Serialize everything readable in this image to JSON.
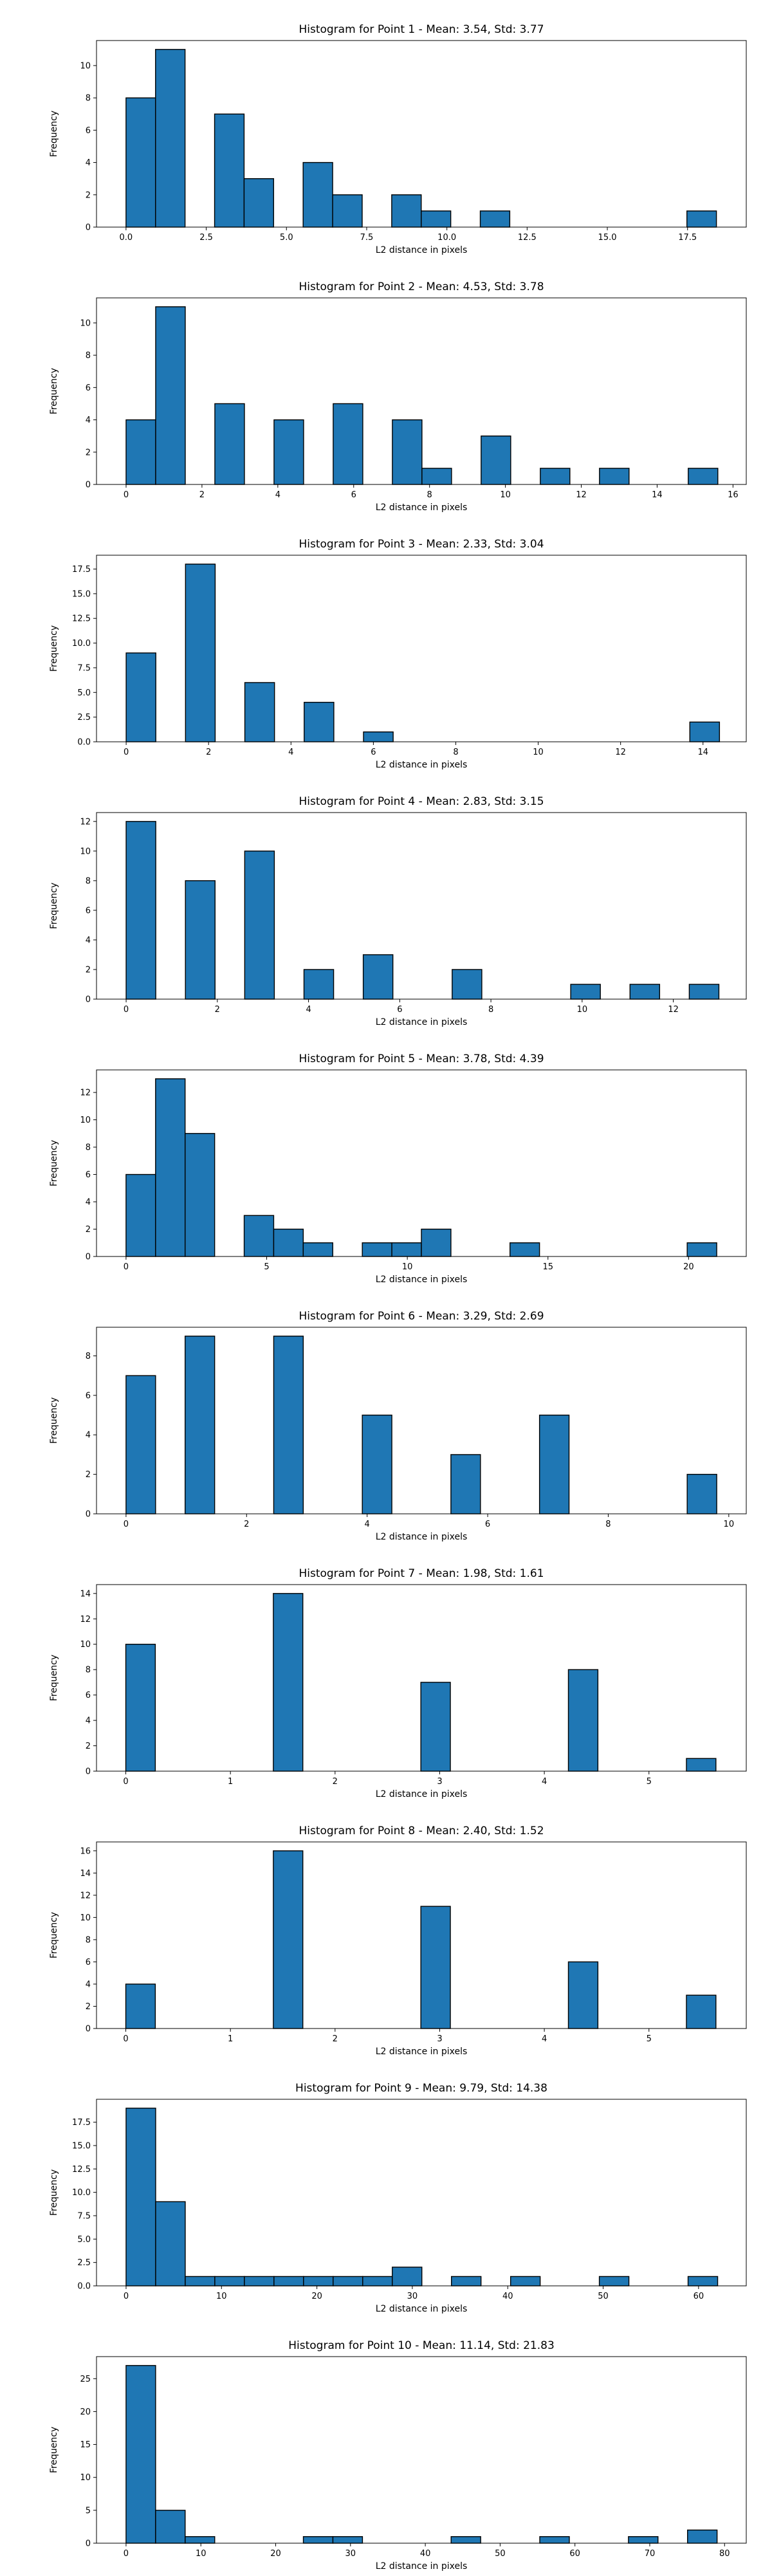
{
  "chart_data": [
    {
      "type": "bar",
      "title": "Histogram for Point 1 - Mean: 3.54, Std: 3.77",
      "xlabel": "L2 distance in pixels",
      "ylabel": "Frequency",
      "xlim": [
        -0.92,
        19.33
      ],
      "ylim": [
        0,
        11.55
      ],
      "xticks": [
        "0.0",
        "2.5",
        "5.0",
        "7.5",
        "10.0",
        "12.5",
        "15.0",
        "17.5"
      ],
      "xtick_values": [
        0,
        2.5,
        5,
        7.5,
        10,
        12.5,
        15,
        17.5
      ],
      "yticks": [
        0,
        2,
        4,
        6,
        8,
        10
      ],
      "bin_width": 0.92,
      "bins": [
        0,
        0.92,
        1.84,
        2.76,
        3.68,
        4.6,
        5.52,
        6.44,
        7.36,
        8.28,
        9.2,
        10.12,
        11.04,
        11.96,
        12.88,
        13.8,
        14.72,
        15.64,
        16.56,
        17.48
      ],
      "counts": [
        8,
        11,
        0,
        7,
        3,
        0,
        4,
        2,
        0,
        2,
        1,
        0,
        1,
        0,
        0,
        0,
        0,
        0,
        0,
        1
      ],
      "grid": false
    },
    {
      "type": "bar",
      "title": "Histogram for Point 2 - Mean: 4.53, Std: 3.78",
      "xlabel": "L2 distance in pixels",
      "ylabel": "Frequency",
      "xlim": [
        -0.78,
        16.35
      ],
      "ylim": [
        0,
        11.55
      ],
      "xticks": [
        "0",
        "2",
        "4",
        "6",
        "8",
        "10",
        "12",
        "14",
        "16"
      ],
      "xtick_values": [
        0,
        2,
        4,
        6,
        8,
        10,
        12,
        14,
        16
      ],
      "yticks": [
        0,
        2,
        4,
        6,
        8,
        10
      ],
      "bin_width": 0.78,
      "bins": [
        0,
        0.78,
        1.56,
        2.34,
        3.12,
        3.9,
        4.68,
        5.46,
        6.24,
        7.02,
        7.8,
        8.58,
        9.36,
        10.14,
        10.92,
        11.7,
        12.48,
        13.26,
        14.04,
        14.82
      ],
      "counts": [
        4,
        11,
        0,
        5,
        0,
        4,
        0,
        5,
        0,
        4,
        1,
        0,
        3,
        0,
        1,
        0,
        1,
        0,
        0,
        1
      ],
      "grid": false
    },
    {
      "type": "bar",
      "title": "Histogram for Point 3 - Mean: 2.33, Std: 3.04",
      "xlabel": "L2 distance in pixels",
      "ylabel": "Frequency",
      "xlim": [
        -0.72,
        15.05
      ],
      "ylim": [
        0,
        18.9
      ],
      "xticks": [
        "0",
        "2",
        "4",
        "6",
        "8",
        "10",
        "12",
        "14"
      ],
      "xtick_values": [
        0,
        2,
        4,
        6,
        8,
        10,
        12,
        14
      ],
      "yticks": [
        0,
        2.5,
        5,
        7.5,
        10,
        12.5,
        15,
        17.5
      ],
      "ytick_labels": [
        "0.0",
        "2.5",
        "5.0",
        "7.5",
        "10.0",
        "12.5",
        "15.0",
        "17.5"
      ],
      "bin_width": 0.72,
      "bins": [
        0,
        0.72,
        1.44,
        2.16,
        2.88,
        3.6,
        4.32,
        5.04,
        5.76,
        6.48,
        7.2,
        7.92,
        8.64,
        9.36,
        10.08,
        10.8,
        11.52,
        12.24,
        12.96,
        13.68
      ],
      "counts": [
        9,
        0,
        18,
        0,
        6,
        0,
        4,
        0,
        1,
        0,
        0,
        0,
        0,
        0,
        0,
        0,
        0,
        0,
        0,
        2
      ],
      "grid": false
    },
    {
      "type": "bar",
      "title": "Histogram for Point 4 - Mean: 2.83, Std: 3.15",
      "xlabel": "L2 distance in pixels",
      "ylabel": "Frequency",
      "xlim": [
        -0.65,
        13.6
      ],
      "ylim": [
        0,
        12.6
      ],
      "xticks": [
        "0",
        "2",
        "4",
        "6",
        "8",
        "10",
        "12"
      ],
      "xtick_values": [
        0,
        2,
        4,
        6,
        8,
        10,
        12
      ],
      "yticks": [
        0,
        2,
        4,
        6,
        8,
        10,
        12
      ],
      "bin_width": 0.65,
      "bins": [
        0,
        0.65,
        1.3,
        1.95,
        2.6,
        3.25,
        3.9,
        4.55,
        5.2,
        5.85,
        6.5,
        7.15,
        7.8,
        8.45,
        9.1,
        9.75,
        10.4,
        11.05,
        11.7,
        12.35
      ],
      "counts": [
        12,
        0,
        8,
        0,
        10,
        0,
        2,
        0,
        3,
        0,
        0,
        2,
        0,
        0,
        0,
        1,
        0,
        1,
        0,
        1
      ],
      "grid": false
    },
    {
      "type": "bar",
      "title": "Histogram for Point 5 - Mean: 3.78, Std: 4.39",
      "xlabel": "L2 distance in pixels",
      "ylabel": "Frequency",
      "xlim": [
        -1.05,
        22.05
      ],
      "ylim": [
        0,
        13.65
      ],
      "xticks": [
        "0",
        "5",
        "10",
        "15",
        "20"
      ],
      "xtick_values": [
        0,
        5,
        10,
        15,
        20
      ],
      "yticks": [
        0,
        2,
        4,
        6,
        8,
        10,
        12
      ],
      "bin_width": 1.05,
      "bins": [
        0,
        1.05,
        2.1,
        3.15,
        4.2,
        5.25,
        6.3,
        7.35,
        8.4,
        9.45,
        10.5,
        11.55,
        12.6,
        13.65,
        14.7,
        15.75,
        16.8,
        17.85,
        18.9,
        19.95
      ],
      "counts": [
        6,
        13,
        9,
        0,
        3,
        2,
        1,
        0,
        1,
        1,
        2,
        0,
        0,
        1,
        0,
        0,
        0,
        0,
        0,
        1
      ],
      "grid": false
    },
    {
      "type": "bar",
      "title": "Histogram for Point 6 - Mean: 3.29, Std: 2.69",
      "xlabel": "L2 distance in pixels",
      "ylabel": "Frequency",
      "xlim": [
        -0.49,
        10.29
      ],
      "ylim": [
        0,
        9.45
      ],
      "xticks": [
        "0",
        "2",
        "4",
        "6",
        "8",
        "10"
      ],
      "xtick_values": [
        0,
        2,
        4,
        6,
        8,
        10
      ],
      "yticks": [
        0,
        2,
        4,
        6,
        8
      ],
      "bin_width": 0.49,
      "bins": [
        0,
        0.49,
        0.98,
        1.47,
        1.96,
        2.45,
        2.94,
        3.43,
        3.92,
        4.41,
        4.9,
        5.39,
        5.88,
        6.37,
        6.86,
        7.35,
        7.84,
        8.33,
        8.82,
        9.31
      ],
      "counts": [
        7,
        0,
        9,
        0,
        0,
        9,
        0,
        0,
        5,
        0,
        0,
        3,
        0,
        0,
        5,
        0,
        0,
        0,
        0,
        2
      ],
      "grid": false
    },
    {
      "type": "bar",
      "title": "Histogram for Point 7 - Mean: 1.98, Std: 1.61",
      "xlabel": "L2 distance in pixels",
      "ylabel": "Frequency",
      "xlim": [
        -0.28,
        5.93
      ],
      "ylim": [
        0,
        14.7
      ],
      "xticks": [
        "0",
        "1",
        "2",
        "3",
        "4",
        "5"
      ],
      "xtick_values": [
        0,
        1,
        2,
        3,
        4,
        5
      ],
      "yticks": [
        0,
        2,
        4,
        6,
        8,
        10,
        12,
        14
      ],
      "bin_width": 0.282,
      "bins": [
        0,
        0.282,
        0.564,
        0.846,
        1.128,
        1.41,
        1.692,
        1.974,
        2.256,
        2.538,
        2.82,
        3.102,
        3.384,
        3.666,
        3.948,
        4.23,
        4.512,
        4.794,
        5.076,
        5.358
      ],
      "counts": [
        10,
        0,
        0,
        0,
        0,
        14,
        0,
        0,
        0,
        0,
        7,
        0,
        0,
        0,
        0,
        8,
        0,
        0,
        0,
        1
      ],
      "grid": false
    },
    {
      "type": "bar",
      "title": "Histogram for Point 8 - Mean: 2.40, Std: 1.52",
      "xlabel": "L2 distance in pixels",
      "ylabel": "Frequency",
      "xlim": [
        -0.28,
        5.93
      ],
      "ylim": [
        0,
        16.8
      ],
      "xticks": [
        "0",
        "1",
        "2",
        "3",
        "4",
        "5"
      ],
      "xtick_values": [
        0,
        1,
        2,
        3,
        4,
        5
      ],
      "yticks": [
        0,
        2,
        4,
        6,
        8,
        10,
        12,
        14,
        16
      ],
      "bin_width": 0.282,
      "bins": [
        0,
        0.282,
        0.564,
        0.846,
        1.128,
        1.41,
        1.692,
        1.974,
        2.256,
        2.538,
        2.82,
        3.102,
        3.384,
        3.666,
        3.948,
        4.23,
        4.512,
        4.794,
        5.076,
        5.358
      ],
      "counts": [
        4,
        0,
        0,
        0,
        0,
        16,
        0,
        0,
        0,
        0,
        11,
        0,
        0,
        0,
        0,
        6,
        0,
        0,
        0,
        3
      ],
      "grid": false
    },
    {
      "type": "bar",
      "title": "Histogram for Point 9 - Mean: 9.79, Std: 14.38",
      "xlabel": "L2 distance in pixels",
      "ylabel": "Frequency",
      "xlim": [
        -3.1,
        65.0
      ],
      "ylim": [
        0,
        19.95
      ],
      "xticks": [
        "0",
        "10",
        "20",
        "30",
        "40",
        "50",
        "60"
      ],
      "xtick_values": [
        0,
        10,
        20,
        30,
        40,
        50,
        60
      ],
      "yticks": [
        0,
        2.5,
        5,
        7.5,
        10,
        12.5,
        15,
        17.5
      ],
      "ytick_labels": [
        "0.0",
        "2.5",
        "5.0",
        "7.5",
        "10.0",
        "12.5",
        "15.0",
        "17.5"
      ],
      "bin_width": 3.1,
      "bins": [
        0,
        3.1,
        6.2,
        9.3,
        12.4,
        15.5,
        18.6,
        21.7,
        24.8,
        27.9,
        31.0,
        34.1,
        37.2,
        40.3,
        43.4,
        46.5,
        49.6,
        52.7,
        55.8,
        58.9
      ],
      "counts": [
        19,
        9,
        1,
        1,
        1,
        1,
        1,
        1,
        1,
        2,
        0,
        1,
        0,
        1,
        0,
        0,
        1,
        0,
        0,
        1
      ],
      "grid": false
    },
    {
      "type": "bar",
      "title": "Histogram for Point 10 - Mean: 11.14, Std: 21.83",
      "xlabel": "L2 distance in pixels",
      "ylabel": "Frequency",
      "xlim": [
        -3.95,
        82.9
      ],
      "ylim": [
        0,
        28.35
      ],
      "xticks": [
        "0",
        "10",
        "20",
        "30",
        "40",
        "50",
        "60",
        "70",
        "80"
      ],
      "xtick_values": [
        0,
        10,
        20,
        30,
        40,
        50,
        60,
        70,
        80
      ],
      "yticks": [
        0,
        5,
        10,
        15,
        20,
        25
      ],
      "bin_width": 3.95,
      "bins": [
        0,
        3.95,
        7.9,
        11.85,
        15.8,
        19.75,
        23.7,
        27.65,
        31.6,
        35.55,
        39.5,
        43.45,
        47.4,
        51.35,
        55.3,
        59.25,
        63.2,
        67.15,
        71.1,
        75.05
      ],
      "counts": [
        27,
        5,
        1,
        0,
        0,
        0,
        1,
        1,
        0,
        0,
        0,
        1,
        0,
        0,
        1,
        0,
        0,
        1,
        0,
        2
      ],
      "grid": false
    }
  ],
  "colors": {
    "bar_fill": "#1f77b4",
    "bar_edge": "#000000",
    "axis": "#000000"
  }
}
